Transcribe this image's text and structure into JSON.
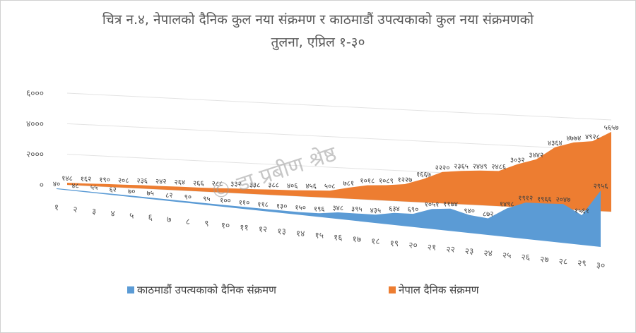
{
  "chart_data": {
    "type": "area3d",
    "title": "चित्र न.४, नेपालको दैनिक कुल नया संक्रमण र काठमाडौं उपत्यकाको कुल नया संक्रमणको तुलना, एप्रिल १-३०",
    "watermark": "© डा प्रबीण श्रेष्ठ",
    "categories": [
      "१",
      "२",
      "३",
      "४",
      "५",
      "६",
      "७",
      "८",
      "९",
      "१०",
      "११",
      "१२",
      "१३",
      "१४",
      "१५",
      "१६",
      "१७",
      "१८",
      "१९",
      "२०",
      "२१",
      "२२",
      "२३",
      "२४",
      "२५",
      "२६",
      "२७",
      "२८",
      "२९",
      "३०"
    ],
    "ylim": [
      0,
      6000
    ],
    "yticks": [
      {
        "value": 0,
        "label": "०"
      },
      {
        "value": 2000,
        "label": "२०००"
      },
      {
        "value": 4000,
        "label": "४०००"
      },
      {
        "value": 6000,
        "label": "६०००"
      }
    ],
    "grid": true,
    "legend": "bottom",
    "series": [
      {
        "name": "काठमाडौं उपत्यकाको दैनिक संक्रमण",
        "color": "#5b9bd5",
        "values": [
          40,
          48,
          55,
          62,
          70,
          75,
          82,
          90,
          95,
          100,
          110,
          118,
          130,
          150,
          196,
          348,
          395,
          435,
          634,
          690,
          1051,
          1174,
          940,
          872,
          1498,
          1912,
          1966,
          2047,
          1561,
          2956
        ],
        "value_labels": [
          "४०",
          "४८",
          "५५",
          "६२",
          "७०",
          "७५",
          "८२",
          "९०",
          "९५",
          "१००",
          "११०",
          "११८",
          "१३०",
          "१५०",
          "१९६",
          "३४८",
          "३९५",
          "४३५",
          "६३४",
          "६९०",
          "१०५१",
          "११७४",
          "९४०",
          "८७२",
          "१४९८",
          "१९१२",
          "१९६६",
          "२०४७",
          "१५६१",
          "२९५६"
        ]
      },
      {
        "name": "नेपाल दैनिक संक्रमण",
        "color": "#ed7d31",
        "values": [
          148,
          162,
          190,
          208,
          236,
          242,
          264,
          266,
          288,
          332,
          338,
          388,
          406,
          456,
          508,
          781,
          1018,
          1089,
          1227,
          1667,
          2220,
          2365,
          2449,
          2486,
          3032,
          3442,
          4364,
          4774,
          4928,
          5657
        ],
        "value_labels": [
          "१४८",
          "१६२",
          "१९०",
          "२०८",
          "२३६",
          "२४२",
          "२६४",
          "२६६",
          "२८८",
          "३३२",
          "३३८",
          "३८८",
          "४०६",
          "४५६",
          "५०८",
          "७८१",
          "१०१८",
          "१०८९",
          "१२२७",
          "१६६७",
          "२२२०",
          "२३६५",
          "२४४९",
          "२४८६",
          "३०३२",
          "३४४२",
          "४३६४",
          "४७७४",
          "४९२८",
          "५६५७"
        ]
      }
    ]
  }
}
